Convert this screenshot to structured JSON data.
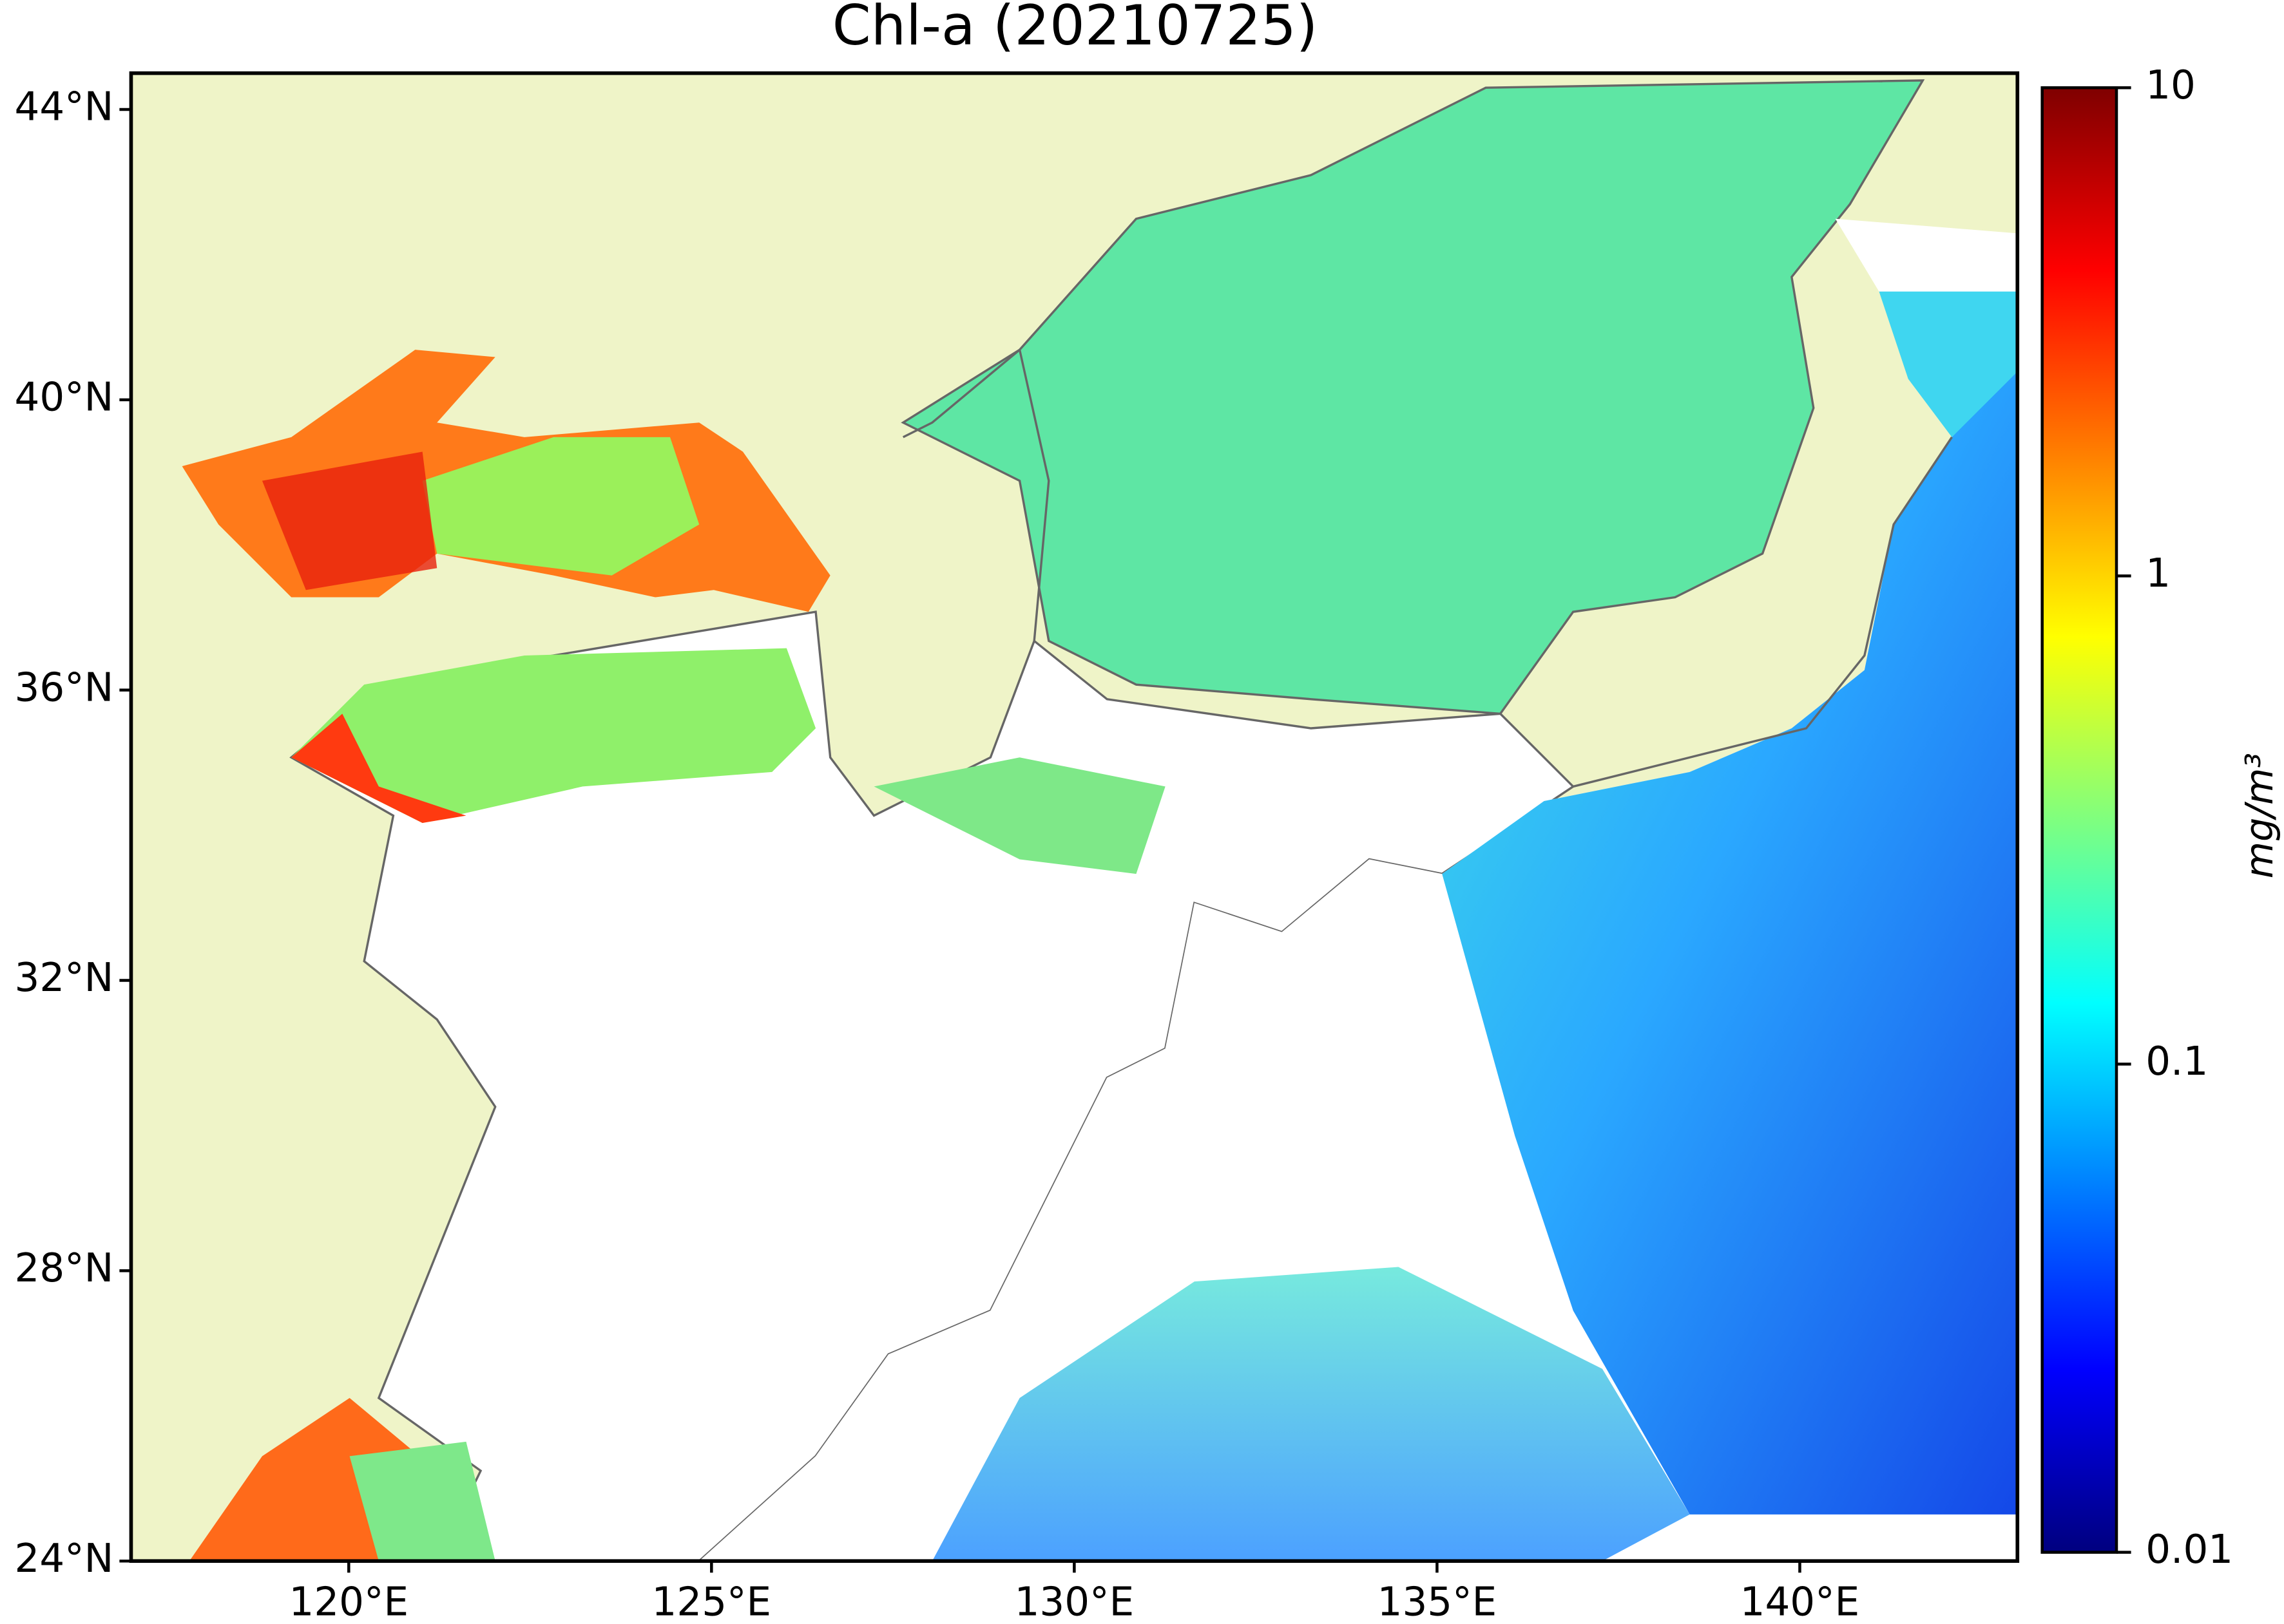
{
  "chart_data": {
    "type": "map",
    "title": "Chl-a (20210725)",
    "xlim": [
      117,
      143
    ],
    "ylim": [
      24,
      44.5
    ],
    "xticks": [
      {
        "value": 120,
        "label": "120°E"
      },
      {
        "value": 125,
        "label": "125°E"
      },
      {
        "value": 130,
        "label": "130°E"
      },
      {
        "value": 135,
        "label": "135°E"
      },
      {
        "value": 140,
        "label": "140°E"
      }
    ],
    "yticks": [
      {
        "value": 24,
        "label": "24°N"
      },
      {
        "value": 28,
        "label": "28°N"
      },
      {
        "value": 32,
        "label": "32°N"
      },
      {
        "value": 36,
        "label": "36°N"
      },
      {
        "value": 40,
        "label": "40°N"
      },
      {
        "value": 44,
        "label": "44°N"
      }
    ],
    "colorbar": {
      "label": "mg/m³",
      "scale": "log",
      "lim": [
        0.01,
        10
      ],
      "ticks": [
        0.01,
        0.1,
        1,
        10
      ],
      "colormap": "jet"
    }
  }
}
